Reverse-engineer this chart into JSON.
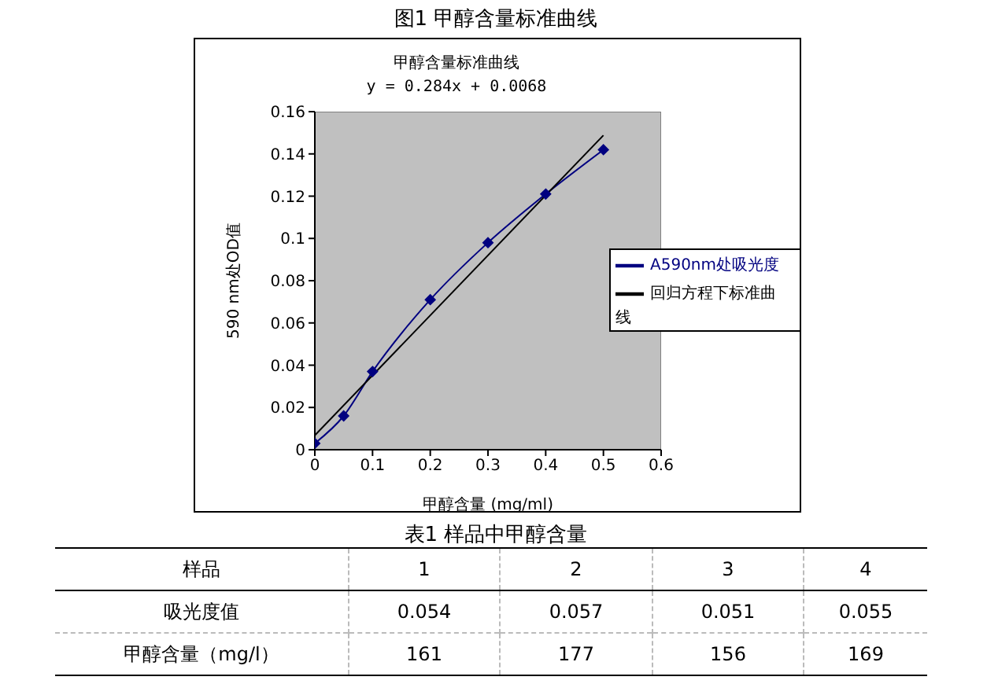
{
  "chart_data": {
    "type": "line",
    "title": "甲醇含量标准曲线",
    "subtitle": "y = 0.284x + 0.0068",
    "xlabel": "甲醇含量 (mg/ml)",
    "ylabel": "590 nm处OD值",
    "annotations": [
      "图1  甲醇含量标准曲线",
      "表1  样品中甲醇含量",
      "样品",
      "1",
      "2",
      "3",
      "4",
      "吸光度值",
      "0.054",
      "0.057",
      "0.051",
      "0.055",
      "甲醇含量（mg/l）",
      "161",
      "177",
      "156",
      "169"
    ],
    "x": [
      0,
      0.05,
      0.1,
      0.2,
      0.3,
      0.4,
      0.5
    ],
    "series": [
      {
        "name": "A590nm处吸光度",
        "color": "#000080",
        "values": [
          0.003,
          0.016,
          0.037,
          0.071,
          0.098,
          0.121,
          0.142
        ],
        "marker": "diamond"
      },
      {
        "name": "回归方程下标准曲线",
        "color": "#000000",
        "x": [
          0,
          0.5
        ],
        "values": [
          0.0068,
          0.1488
        ],
        "marker": "none"
      }
    ],
    "xlim": [
      0,
      0.6
    ],
    "xticks": [
      0,
      0.1,
      0.2,
      0.3,
      0.4,
      0.5,
      0.6
    ],
    "ylim": [
      0,
      0.16
    ],
    "yticks": [
      0,
      0.02,
      0.04,
      0.06,
      0.08,
      0.1,
      0.12,
      0.14,
      0.16
    ],
    "grid": false,
    "legend": "right",
    "line_style": "solid"
  }
}
